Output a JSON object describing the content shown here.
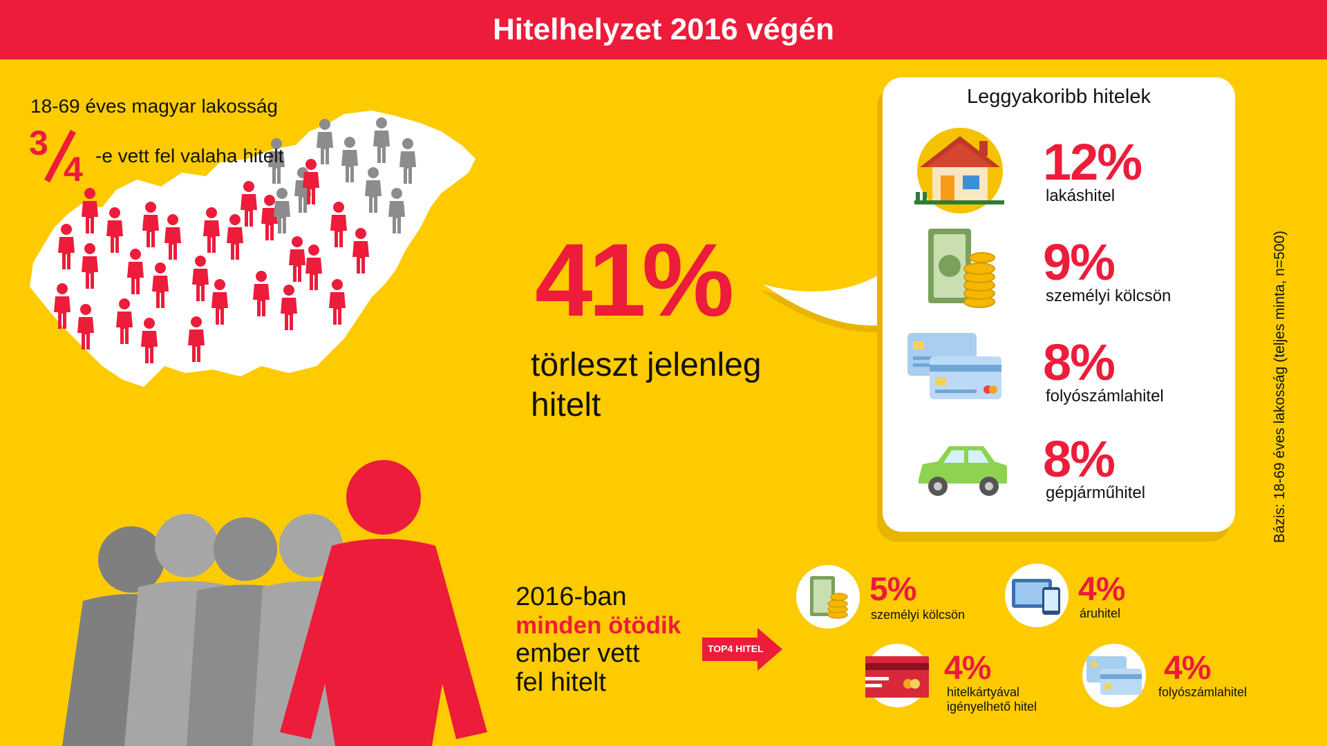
{
  "title": "Hitelhelyzet 2016 végén",
  "population": {
    "label": "18-69 éves magyar lakosság",
    "fraction_num": "3",
    "fraction_den": "4",
    "fraction_text": "-e vett fel valaha hitelt"
  },
  "repaying": {
    "percent": "41%",
    "line1": "törleszt jelenleg",
    "line2": "hitelt"
  },
  "top_loans": {
    "title": "Leggyakoribb hitelek",
    "items": [
      {
        "percent": "12%",
        "label": "lakáshitel",
        "icon": "house-icon"
      },
      {
        "percent": "9%",
        "label": "személyi kölcsön",
        "icon": "money-coins-icon"
      },
      {
        "percent": "8%",
        "label": "folyószámlahitel",
        "icon": "bank-cards-icon"
      },
      {
        "percent": "8%",
        "label": "gépjárműhitel",
        "icon": "car-icon"
      }
    ]
  },
  "year2016": {
    "line1": "2016-ban",
    "line2": "minden ötödik",
    "line3": "ember vett",
    "line4": "fel hitelt"
  },
  "top4": {
    "arrow_label": "TOP4 HITEL",
    "items": [
      {
        "percent": "5%",
        "label": "személyi kölcsön",
        "icon": "money-coins-icon"
      },
      {
        "percent": "4%",
        "label": "áruhitel",
        "icon": "devices-icon"
      },
      {
        "percent": "4%",
        "label": "hitelkártyával igényelhető hitel",
        "label_line1": "hitelkártyával",
        "label_line2": "igényelhető hitel",
        "icon": "credit-card-icon"
      },
      {
        "percent": "4%",
        "label": "folyószámlahitel",
        "icon": "bank-cards-icon"
      }
    ]
  },
  "base_note": "Bázis: 18-69 éves lakosság (teljes minta, n=500)",
  "colors": {
    "background": "#fdcb00",
    "accent": "#ec1c3a",
    "gray": "#8c8c8c"
  }
}
